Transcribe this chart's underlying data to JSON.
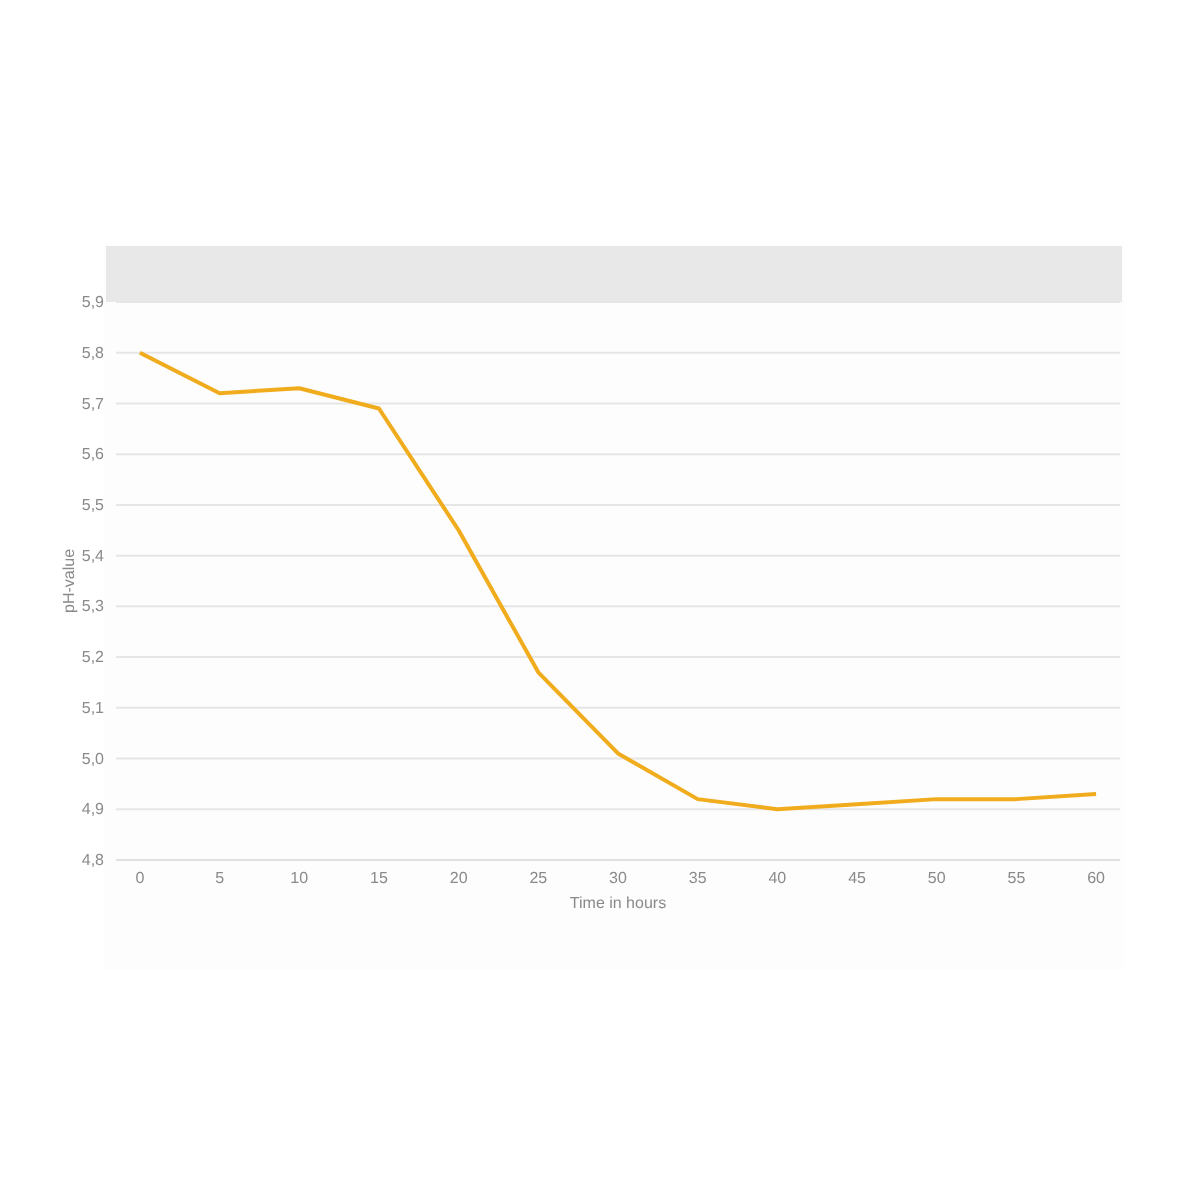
{
  "chart_data": {
    "type": "line",
    "xlabel": "Time in hours",
    "ylabel": "pH-value",
    "categories": [
      "0",
      "5",
      "10",
      "15",
      "20",
      "25",
      "30",
      "35",
      "40",
      "45",
      "50",
      "55",
      "60"
    ],
    "series": [
      {
        "color": "#f0ac1c",
        "values": [
          5.8,
          5.72,
          5.73,
          5.69,
          5.45,
          5.17,
          5.01,
          4.92,
          4.9,
          4.91,
          4.92,
          4.92,
          4.93
        ]
      }
    ],
    "ylim": [
      4.8,
      5.9
    ],
    "yticks": [
      {
        "value": 4.8,
        "label": "4,8"
      },
      {
        "value": 4.9,
        "label": "4,9"
      },
      {
        "value": 5.0,
        "label": "5,0"
      },
      {
        "value": 5.1,
        "label": "5,1"
      },
      {
        "value": 5.2,
        "label": "5,2"
      },
      {
        "value": 5.3,
        "label": "5,3"
      },
      {
        "value": 5.4,
        "label": "5,4"
      },
      {
        "value": 5.5,
        "label": "5,5"
      },
      {
        "value": 5.6,
        "label": "5,6"
      },
      {
        "value": 5.7,
        "label": "5,7"
      },
      {
        "value": 5.8,
        "label": "5,8"
      },
      {
        "value": 5.9,
        "label": "5,9"
      }
    ],
    "grid": "y",
    "marker": "none",
    "line_style": "solid"
  }
}
